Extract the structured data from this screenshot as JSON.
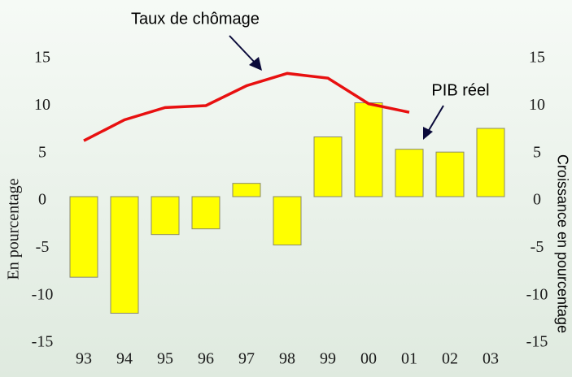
{
  "chart_data": {
    "type": "bar-line",
    "categories": [
      "93",
      "94",
      "95",
      "96",
      "97",
      "98",
      "99",
      "00",
      "01",
      "02",
      "03"
    ],
    "series": [
      {
        "name": "PIB réel",
        "type": "bar",
        "color": "#ffff00",
        "values": [
          -8.5,
          -12.3,
          -4.0,
          -3.4,
          1.4,
          -5.1,
          6.3,
          9.9,
          5.0,
          4.7,
          7.2
        ]
      },
      {
        "name": "Taux de chômage",
        "type": "line",
        "color": "#e81010",
        "values": [
          5.9,
          8.1,
          9.4,
          9.6,
          11.7,
          13.0,
          12.5,
          9.8,
          8.9,
          null,
          null
        ]
      }
    ],
    "ylabel": "En pourcentage",
    "y2label": "Croissance en pourcentage",
    "ylim": [
      -15,
      15
    ],
    "yticks": [
      15,
      10,
      5,
      0,
      -5,
      -10,
      -15
    ],
    "y2lim": [
      -15,
      15
    ],
    "y2ticks": [
      15,
      10,
      5,
      0,
      -5,
      -10,
      -15
    ],
    "grid": false
  }
}
